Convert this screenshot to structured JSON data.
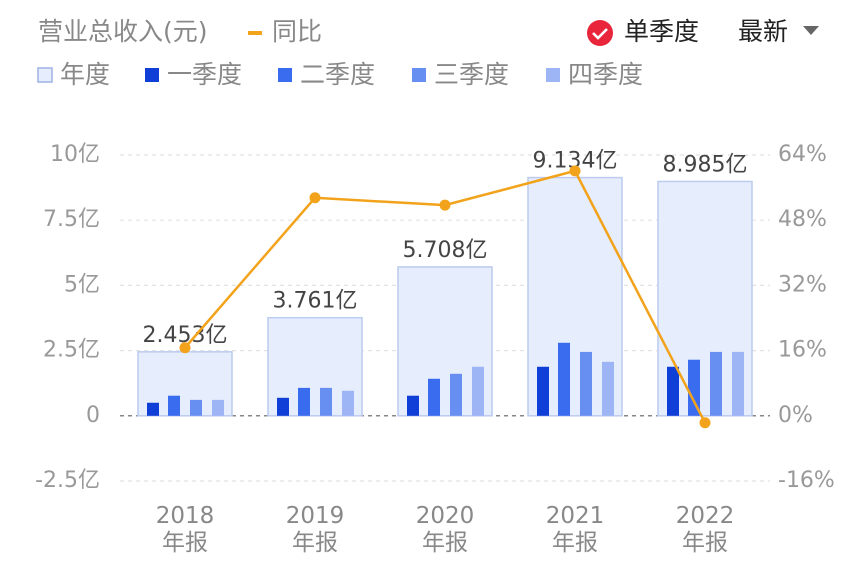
{
  "chart_data": {
    "type": "bar",
    "title": "营业总收入(元)",
    "controls": {
      "single_quarter": "单季度",
      "sort": "最新"
    },
    "categories": [
      "2018年报",
      "2019年报",
      "2020年报",
      "2021年报",
      "2022年报"
    ],
    "series": [
      {
        "name": "年度",
        "type": "bar",
        "color": "#e6edfc",
        "values": [
          2.453,
          3.761,
          5.708,
          9.134,
          8.985
        ],
        "value_labels": [
          "2.453亿",
          "3.761亿",
          "5.708亿",
          "9.134亿",
          "8.985亿"
        ]
      },
      {
        "name": "一季度",
        "type": "bar",
        "color": "#0f3fd6",
        "values": [
          0.5,
          0.69,
          0.77,
          1.88,
          1.88
        ]
      },
      {
        "name": "二季度",
        "type": "bar",
        "color": "#3a6cf0",
        "values": [
          0.77,
          1.07,
          1.42,
          2.8,
          2.15
        ]
      },
      {
        "name": "三季度",
        "type": "bar",
        "color": "#678ff1",
        "values": [
          0.61,
          1.07,
          1.61,
          2.45,
          2.45
        ]
      },
      {
        "name": "四季度",
        "type": "bar",
        "color": "#9db4f5",
        "values": [
          0.61,
          0.96,
          1.88,
          2.07,
          2.45
        ]
      },
      {
        "name": "同比",
        "type": "line",
        "axis": "y2",
        "color": "#f2a31b",
        "values": [
          16.7,
          53.5,
          51.7,
          60.1,
          -1.7
        ]
      }
    ],
    "ylim": [
      -2.5,
      10
    ],
    "yticks": [
      {
        "value": -2.5,
        "label": "-2.5亿"
      },
      0,
      {
        "value": 2.5,
        "label": "2.5亿"
      },
      {
        "value": 5,
        "label": "5亿"
      },
      {
        "value": 7.5,
        "label": "7.5亿"
      },
      {
        "value": 10,
        "label": "10亿"
      }
    ],
    "y2lim": [
      -16,
      64
    ],
    "y2ticks": [
      {
        "value": -16,
        "label": "-16%"
      },
      {
        "value": 0,
        "label": "0%"
      },
      {
        "value": 16,
        "label": "16%"
      },
      {
        "value": 32,
        "label": "32%"
      },
      {
        "value": 48,
        "label": "48%"
      },
      {
        "value": 64,
        "label": "64%"
      }
    ],
    "grid": true
  }
}
